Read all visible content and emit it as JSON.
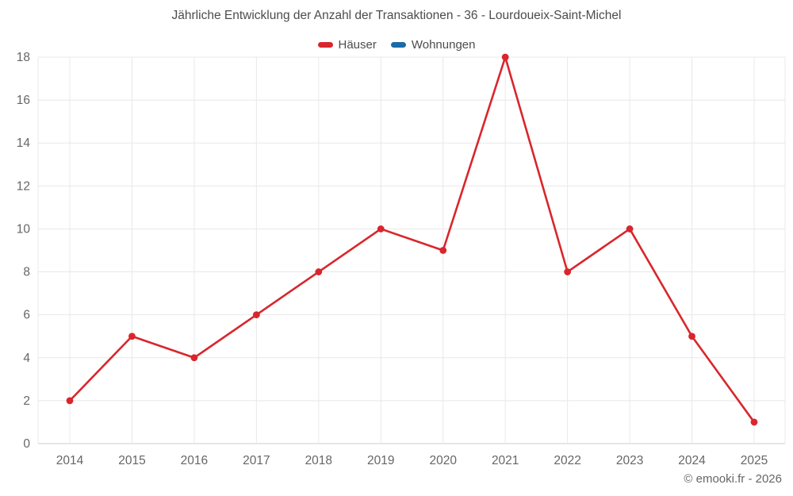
{
  "chart": {
    "title": "Jährliche Entwicklung der Anzahl der Transaktionen - 36 - Lourdoueix-Saint-Michel",
    "footer": "© emooki.fr - 2026"
  },
  "chart_data": {
    "type": "line",
    "title": "Jährliche Entwicklung der Anzahl der Transaktionen - 36 - Lourdoueix-Saint-Michel",
    "xlabel": "",
    "ylabel": "",
    "categories": [
      "2014",
      "2015",
      "2016",
      "2017",
      "2018",
      "2019",
      "2020",
      "2021",
      "2022",
      "2023",
      "2024",
      "2025"
    ],
    "series": [
      {
        "name": "Häuser",
        "color": "#d8262c",
        "values": [
          2,
          5,
          4,
          6,
          8,
          10,
          9,
          18,
          8,
          10,
          5,
          1
        ]
      },
      {
        "name": "Wohnungen",
        "color": "#1a6ca8",
        "values": []
      }
    ],
    "ylim": [
      0,
      18
    ],
    "ytick_step": 2,
    "grid": true,
    "legend_position": "top",
    "colors": {
      "grid": "#e8e8e8",
      "axis": "#cccccc",
      "tick_label": "#666666",
      "title": "#4c4c4c",
      "footer": "#666666"
    }
  }
}
